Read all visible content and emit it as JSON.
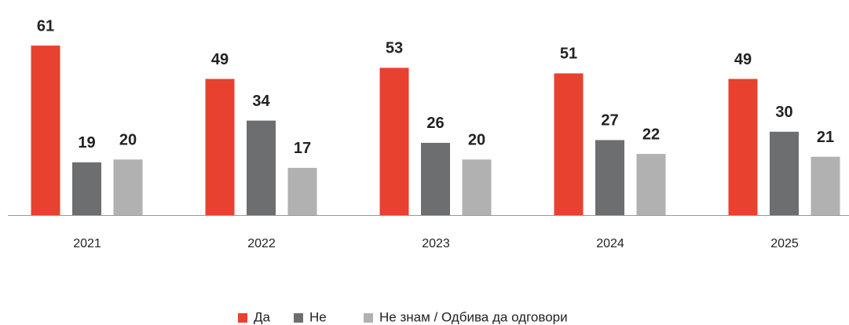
{
  "chart_data": {
    "type": "bar",
    "categories": [
      "2021",
      "2022",
      "2023",
      "2024",
      "2025"
    ],
    "series": [
      {
        "name": "Да",
        "color": "#e8412f",
        "values": [
          61,
          49,
          53,
          51,
          49
        ]
      },
      {
        "name": "Не",
        "color": "#6d6e70",
        "values": [
          19,
          34,
          26,
          27,
          30
        ]
      },
      {
        "name": "Не знам / Одбива да одговори",
        "color": "#b1b1b1",
        "values": [
          20,
          17,
          20,
          22,
          21
        ]
      }
    ],
    "legend": "bottom"
  }
}
